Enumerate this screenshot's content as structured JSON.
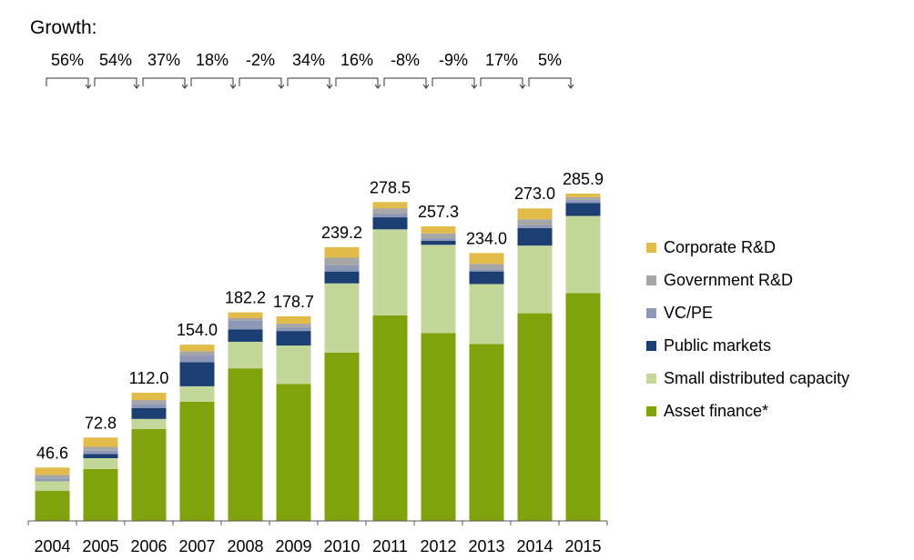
{
  "chart_data": {
    "type": "bar",
    "stacked": true,
    "growth_title": "Growth:",
    "growth_labels": [
      "56%",
      "54%",
      "37%",
      "18%",
      "-2%",
      "34%",
      "16%",
      "-8%",
      "-9%",
      "17%",
      "5%"
    ],
    "categories": [
      "2004",
      "2005",
      "2006",
      "2007",
      "2008",
      "2009",
      "2010",
      "2011",
      "2012",
      "2013",
      "2014",
      "2015"
    ],
    "totals": [
      46.6,
      72.8,
      112.0,
      154.0,
      182.2,
      178.7,
      239.2,
      278.5,
      257.3,
      234.0,
      273.0,
      285.9
    ],
    "total_labels": [
      "46.6",
      "72.8",
      "112.0",
      "154.0",
      "182.2",
      "178.7",
      "239.2",
      "278.5",
      "257.3",
      "234.0",
      "273.0",
      "285.9"
    ],
    "series": [
      {
        "name": "Asset finance*",
        "color": "#80a30d",
        "values": [
          26.2,
          45.4,
          80.3,
          104.2,
          133.3,
          119.7,
          147.1,
          179.6,
          164.2,
          154.6,
          181.4,
          199.0
        ]
      },
      {
        "name": "Small distributed capacity",
        "color": "#c4d79b",
        "values": [
          8.6,
          9.4,
          8.8,
          13.4,
          23.2,
          33.5,
          60.4,
          75.1,
          77.0,
          52.3,
          59.1,
          67.4
        ]
      },
      {
        "name": "Public markets",
        "color": "#1b3f73",
        "values": [
          0.3,
          3.6,
          9.6,
          21.0,
          10.9,
          12.7,
          10.4,
          10.5,
          3.6,
          11.0,
          15.3,
          11.4
        ]
      },
      {
        "name": "VC/PE",
        "color": "#8d97b6",
        "values": [
          2.0,
          2.9,
          3.3,
          6.0,
          7.6,
          2.9,
          5.3,
          3.5,
          2.0,
          1.8,
          2.6,
          2.4
        ]
      },
      {
        "name": "Government R&D",
        "color": "#a6a6a6",
        "values": [
          3.1,
          3.4,
          3.6,
          3.6,
          2.1,
          3.5,
          6.7,
          4.4,
          4.4,
          4.8,
          5.1,
          2.6
        ]
      },
      {
        "name": "Corporate R&D",
        "color": "#e1bc4b",
        "values": [
          6.4,
          8.1,
          6.4,
          5.8,
          5.1,
          6.4,
          9.3,
          5.4,
          6.1,
          9.5,
          9.5,
          3.1
        ]
      }
    ],
    "legend_order": [
      "Corporate R&D",
      "Government R&D",
      "VC/PE",
      "Public markets",
      "Small distributed capacity",
      "Asset finance*"
    ],
    "ylim": [
      0,
      300
    ],
    "grid": false,
    "legend_position": "right"
  }
}
